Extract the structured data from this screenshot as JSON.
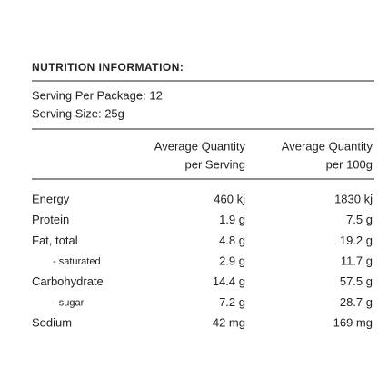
{
  "header": {
    "title": "NUTRITION INFORMATION:"
  },
  "serving": [
    "Serving Per Package: 12",
    "Serving Size: 25g"
  ],
  "table": {
    "columns": [
      [
        "Average Quantity",
        "per Serving"
      ],
      [
        "Average Quantity",
        "per 100g"
      ]
    ],
    "rows": [
      [
        "Energy",
        "460 kj",
        "1830 kj"
      ],
      [
        "Protein",
        "1.9 g",
        "7.5 g"
      ],
      [
        "Fat, total",
        "4.8 g",
        "19.2 g"
      ],
      [
        "- saturated",
        "2.9 g",
        "11.7 g"
      ],
      [
        "Carbohydrate",
        "14.4 g",
        "57.5 g"
      ],
      [
        "- sugar",
        "7.2 g",
        "28.7 g"
      ],
      [
        "Sodium",
        "42 mg",
        "169 mg"
      ]
    ]
  }
}
